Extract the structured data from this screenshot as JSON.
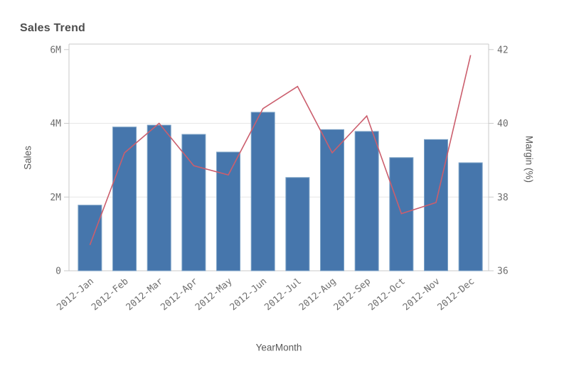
{
  "title": "Sales Trend",
  "colors": {
    "bar": "#4676ac",
    "bar_border": "#7da3c6",
    "line": "#cb5e6d",
    "grid": "#e7e7e7",
    "frame": "#c9c9c9",
    "tick_text": "#6e6e6e",
    "title_text": "#4d4d4d",
    "axis_title_text": "#595959"
  },
  "chart_data": {
    "type": "combo_bar_line",
    "title": "Sales Trend",
    "legend": "none",
    "grid": {
      "horizontal_gridlines_at_left_values": [
        2,
        4
      ]
    },
    "x_axis": {
      "title": "YearMonth",
      "label_rotation_deg": -40,
      "categories": [
        "2012-Jan",
        "2012-Feb",
        "2012-Mar",
        "2012-Apr",
        "2012-May",
        "2012-Jun",
        "2012-Jul",
        "2012-Aug",
        "2012-Sep",
        "2012-Oct",
        "2012-Nov",
        "2012-Dec"
      ]
    },
    "left_axis": {
      "title": "Sales",
      "unit": "millions",
      "tick_labels": [
        "0",
        "2M",
        "4M",
        "6M"
      ],
      "tick_values": [
        0,
        2,
        4,
        6
      ],
      "range": [
        0,
        6.15
      ]
    },
    "right_axis": {
      "title": "Margin (%)",
      "tick_labels": [
        "36",
        "38",
        "40",
        "42"
      ],
      "tick_values": [
        36,
        38,
        40,
        42
      ],
      "range": [
        36,
        42.15
      ]
    },
    "series": [
      {
        "name": "Sales",
        "type": "bar",
        "axis": "left",
        "values": [
          1.78,
          3.9,
          3.95,
          3.7,
          3.22,
          4.3,
          2.53,
          3.83,
          3.78,
          3.07,
          3.56,
          2.93
        ]
      },
      {
        "name": "Margin (%)",
        "type": "line",
        "axis": "right",
        "values": [
          36.7,
          39.2,
          40.0,
          38.85,
          38.6,
          40.4,
          41.0,
          39.2,
          40.2,
          37.55,
          37.85,
          41.85
        ]
      }
    ]
  }
}
